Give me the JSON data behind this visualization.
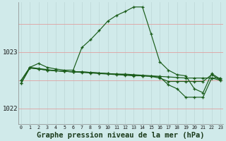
{
  "bg_color": "#d0eaea",
  "grid_color_v": "#c0dada",
  "grid_color_h": "#e0a0a0",
  "line_color": "#1a5c1a",
  "xlabel": "Graphe pression niveau de la mer (hPa)",
  "xlabel_fontsize": 7.5,
  "ylim": [
    1021.72,
    1023.88
  ],
  "xlim": [
    -0.3,
    23.3
  ],
  "yticks": [
    1022,
    1023
  ],
  "xticks": [
    0,
    1,
    2,
    3,
    4,
    5,
    6,
    7,
    8,
    9,
    10,
    11,
    12,
    13,
    14,
    15,
    16,
    17,
    18,
    19,
    20,
    21,
    22,
    23
  ],
  "series": [
    [
      1022.5,
      1022.73,
      1022.8,
      1022.73,
      1022.7,
      1022.68,
      1022.68,
      1023.08,
      1023.22,
      1023.38,
      1023.55,
      1023.65,
      1023.72,
      1023.8,
      1023.8,
      1023.32,
      1022.83,
      1022.68,
      1022.6,
      1022.58,
      1022.35,
      1022.28,
      1022.62,
      1022.52
    ],
    [
      1022.45,
      1022.72,
      1022.7,
      1022.68,
      1022.67,
      1022.66,
      1022.65,
      1022.65,
      1022.64,
      1022.63,
      1022.62,
      1022.61,
      1022.61,
      1022.6,
      1022.59,
      1022.58,
      1022.57,
      1022.56,
      1022.55,
      1022.54,
      1022.54,
      1022.54,
      1022.54,
      1022.54
    ],
    [
      1022.45,
      1022.72,
      1022.7,
      1022.68,
      1022.67,
      1022.66,
      1022.65,
      1022.65,
      1022.64,
      1022.63,
      1022.62,
      1022.61,
      1022.6,
      1022.59,
      1022.58,
      1022.57,
      1022.56,
      1022.42,
      1022.35,
      1022.2,
      1022.2,
      1022.2,
      1022.54,
      1022.5
    ],
    [
      1022.5,
      1022.73,
      1022.71,
      1022.69,
      1022.67,
      1022.66,
      1022.65,
      1022.64,
      1022.63,
      1022.62,
      1022.61,
      1022.6,
      1022.59,
      1022.58,
      1022.58,
      1022.57,
      1022.54,
      1022.48,
      1022.48,
      1022.48,
      1022.48,
      1022.48,
      1022.6,
      1022.5
    ]
  ]
}
